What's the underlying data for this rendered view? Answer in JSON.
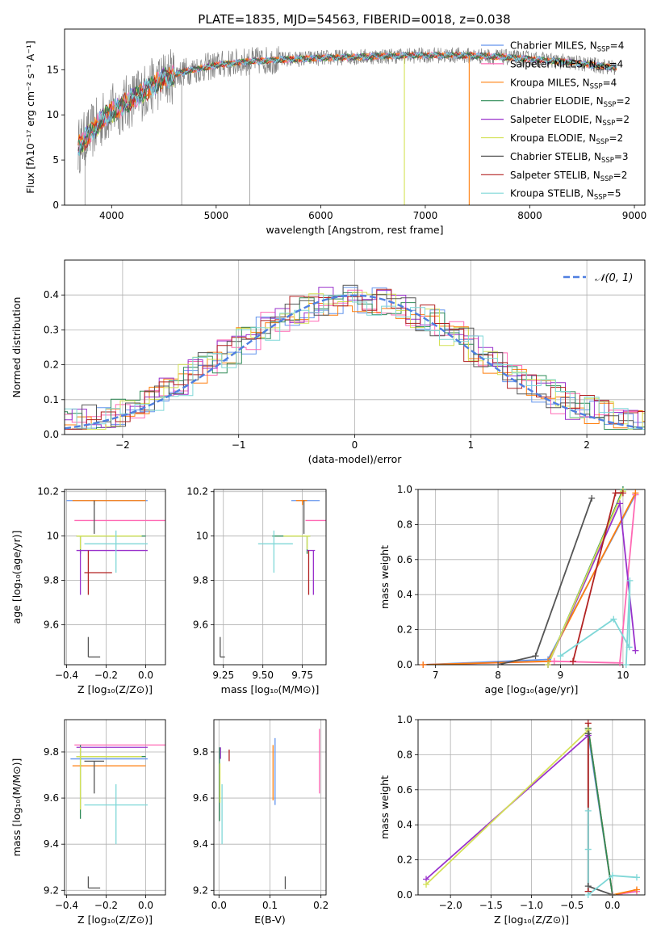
{
  "figure": {
    "title": "PLATE=1835, MJD=54563, FIBERID=0018, z=0.038"
  },
  "model_colors": {
    "Chabrier MILES": "#6495ed",
    "Salpeter MILES": "#ff69b4",
    "Kroupa MILES": "#ff7f0e",
    "Chabrier ELODIE": "#2e8b57",
    "Salpeter ELODIE": "#9932cc",
    "Kroupa ELODIE": "#d4e157",
    "Chabrier STELIB": "#555555",
    "Salpeter STELIB": "#b22222",
    "Kroupa STELIB": "#7fd7d7",
    "data": "#808080"
  },
  "chart_data": [
    {
      "id": "spectrum",
      "type": "line",
      "title": "PLATE=1835, MJD=54563, FIBERID=0018, z=0.038",
      "xlabel": "wavelength [Angstrom, rest frame]",
      "ylabel": "Flux [fλ10⁻¹⁷ erg cm⁻² s⁻¹ A⁻¹]",
      "xlim": [
        3550,
        9100
      ],
      "ylim": [
        0,
        19.5
      ],
      "xticks": [
        4000,
        5000,
        6000,
        7000,
        8000,
        9000
      ],
      "yticks": [
        0,
        5,
        10,
        15
      ],
      "grid": false,
      "legend_position": "top-right",
      "continuum": [
        [
          3680,
          6.5
        ],
        [
          3800,
          8.0
        ],
        [
          3950,
          10.0
        ],
        [
          4100,
          11.0
        ],
        [
          4300,
          12.5
        ],
        [
          4500,
          14.0
        ],
        [
          4700,
          14.8
        ],
        [
          5000,
          15.5
        ],
        [
          5300,
          15.9
        ],
        [
          5600,
          16.1
        ],
        [
          6000,
          16.3
        ],
        [
          6300,
          16.4
        ],
        [
          6600,
          16.5
        ],
        [
          7000,
          16.6
        ],
        [
          7300,
          16.6
        ],
        [
          7600,
          16.5
        ],
        [
          8000,
          16.2
        ],
        [
          8400,
          15.8
        ],
        [
          8830,
          15.2
        ]
      ],
      "dropouts": [
        {
          "x": 6800,
          "y": 0
        },
        {
          "x": 7420,
          "y": 0
        }
      ],
      "series": [
        {
          "name": "Chabrier MILES, N_SSP=4"
        },
        {
          "name": "Salpeter MILES, N_SSP=4"
        },
        {
          "name": "Kroupa MILES, N_SSP=4"
        },
        {
          "name": "Chabrier ELODIE, N_SSP=2"
        },
        {
          "name": "Salpeter ELODIE, N_SSP=2"
        },
        {
          "name": "Kroupa ELODIE, N_SSP=2"
        },
        {
          "name": "Chabrier STELIB, N_SSP=3"
        },
        {
          "name": "Salpeter STELIB, N_SSP=2"
        },
        {
          "name": "Kroupa STELIB, N_SSP=5"
        }
      ]
    },
    {
      "id": "residuals",
      "type": "line",
      "xlabel": "(data-model)/error",
      "ylabel": "Normed distribution",
      "xlim": [
        -2.5,
        2.5
      ],
      "ylim": [
        0,
        0.5
      ],
      "xticks": [
        -2,
        -1,
        0,
        1,
        2
      ],
      "xtick_labels": [
        "−2",
        "−1",
        "0",
        "1",
        "2"
      ],
      "yticks": [
        0.0,
        0.1,
        0.2,
        0.3,
        0.4
      ],
      "grid": true,
      "legend_position": "top-right",
      "gaussian": {
        "name": "𝒩(0, 1)",
        "mean": 0,
        "sigma": 1
      },
      "bin_width": 0.125
    },
    {
      "id": "age-Z",
      "type": "scatter",
      "xlabel": "Z [log₁₀(Z/Z⊙)]",
      "ylabel": "age  [log₁₀(age/yr)]",
      "xlim": [
        -0.41,
        0.1
      ],
      "ylim": [
        9.42,
        10.21
      ],
      "xticks": [
        -0.4,
        -0.2,
        0.0
      ],
      "xtick_labels": [
        "−0.4",
        "−0.2",
        "0.0"
      ],
      "yticks": [
        9.6,
        9.8,
        10.0,
        10.2
      ],
      "grid": true,
      "points": [
        {
          "model": "Chabrier MILES",
          "x": -0.28,
          "y": 10.16,
          "xerr": [
            0.12,
            0.29
          ],
          "yerr": [
            0.0,
            0.0
          ]
        },
        {
          "model": "Salpeter MILES",
          "x": -0.27,
          "y": 10.07,
          "xerr": [
            0.09,
            0.37
          ],
          "yerr": [
            0.0,
            0.0
          ]
        },
        {
          "model": "Kroupa MILES",
          "x": -0.26,
          "y": 10.16,
          "xerr": [
            0.11,
            0.26
          ],
          "yerr": [
            0.02,
            0.0
          ]
        },
        {
          "model": "Chabrier ELODIE",
          "x": -0.33,
          "y": 10.0,
          "xerr": [
            0.02,
            0.33
          ],
          "yerr": [
            0.08,
            0.0
          ]
        },
        {
          "model": "Salpeter ELODIE",
          "x": -0.33,
          "y": 9.935,
          "xerr": [
            0.02,
            0.34
          ],
          "yerr": [
            0.2,
            0.0
          ]
        },
        {
          "model": "Kroupa ELODIE",
          "x": -0.33,
          "y": 10.0,
          "xerr": [
            0.02,
            0.31
          ],
          "yerr": [
            0.06,
            0.0
          ]
        },
        {
          "model": "Chabrier STELIB",
          "x": -0.26,
          "y": 10.16,
          "xerr": [
            0.0,
            0.0
          ],
          "yerr": [
            0.15,
            0.0
          ]
        },
        {
          "model": "Salpeter STELIB",
          "x": -0.29,
          "y": 9.835,
          "xerr": [
            0.02,
            0.12
          ],
          "yerr": [
            0.1,
            0.1
          ]
        },
        {
          "model": "Kroupa STELIB",
          "x": -0.15,
          "y": 9.965,
          "xerr": [
            0.16,
            0.16
          ],
          "yerr": [
            0.13,
            0.06
          ]
        }
      ],
      "scale_bar": {
        "x": -0.29,
        "y": 9.455,
        "dx": 0.06,
        "dy": 0.09
      }
    },
    {
      "id": "age-mass",
      "type": "scatter",
      "xlabel": "mass [log₁₀(M/M⊙)]",
      "xlim": [
        9.19,
        9.9
      ],
      "ylim": [
        9.42,
        10.21
      ],
      "xticks": [
        9.25,
        9.5,
        9.75
      ],
      "xtick_labels": [
        "9.25",
        "9.50",
        "9.75"
      ],
      "yticks": [
        9.6,
        9.8,
        10.0,
        10.2
      ],
      "grid": true,
      "points": [
        {
          "model": "Chabrier MILES",
          "x": 9.76,
          "y": 10.16,
          "xerr": [
            0.08,
            0.1
          ],
          "yerr": [
            0.0,
            0.0
          ]
        },
        {
          "model": "Salpeter MILES",
          "x": 9.83,
          "y": 10.07,
          "xerr": [
            0.06,
            0.1
          ],
          "yerr": [
            0.0,
            0.0
          ]
        },
        {
          "model": "Kroupa MILES",
          "x": 9.75,
          "y": 10.16,
          "xerr": [
            0.04,
            0.03
          ],
          "yerr": [
            0.02,
            0.0
          ]
        },
        {
          "model": "Chabrier ELODIE",
          "x": 9.78,
          "y": 10.0,
          "xerr": [
            0.22,
            0.02
          ],
          "yerr": [
            0.08,
            0.0
          ]
        },
        {
          "model": "Salpeter ELODIE",
          "x": 9.82,
          "y": 9.935,
          "xerr": [
            0.04,
            0.01
          ],
          "yerr": [
            0.2,
            0.0
          ]
        },
        {
          "model": "Kroupa ELODIE",
          "x": 9.78,
          "y": 10.0,
          "xerr": [
            0.15,
            0.02
          ],
          "yerr": [
            0.06,
            0.0
          ]
        },
        {
          "model": "Chabrier STELIB",
          "x": 9.76,
          "y": 10.16,
          "xerr": [
            0.0,
            0.0
          ],
          "yerr": [
            0.15,
            0.0
          ]
        },
        {
          "model": "Salpeter STELIB",
          "x": 9.79,
          "y": 9.835,
          "xerr": [
            0.0,
            0.0
          ],
          "yerr": [
            0.1,
            0.1
          ]
        },
        {
          "model": "Kroupa STELIB",
          "x": 9.57,
          "y": 9.965,
          "xerr": [
            0.1,
            0.12
          ],
          "yerr": [
            0.13,
            0.06
          ]
        }
      ],
      "scale_bar": {
        "x": 9.23,
        "y": 9.455,
        "dx": 0.03,
        "dy": 0.09
      }
    },
    {
      "id": "weight-age",
      "type": "line",
      "xlabel": "age  [log₁₀(age/yr)]",
      "ylabel": "mass weight",
      "xlim": [
        6.72,
        10.35
      ],
      "ylim": [
        0,
        1.0
      ],
      "xticks": [
        7,
        8,
        9,
        10
      ],
      "yticks": [
        0.0,
        0.2,
        0.4,
        0.6,
        0.8,
        1.0
      ],
      "grid": true,
      "series": [
        {
          "model": "Chabrier MILES",
          "x": [
            6.8,
            8.8,
            10.2
          ],
          "y": [
            0.0,
            0.03,
            0.97
          ]
        },
        {
          "model": "Salpeter MILES",
          "x": [
            6.8,
            8.9,
            9.95,
            10.2
          ],
          "y": [
            0.0,
            0.02,
            0.01,
            0.97
          ]
        },
        {
          "model": "Kroupa MILES",
          "x": [
            6.8,
            8.8,
            10.2
          ],
          "y": [
            0.0,
            0.02,
            0.98
          ]
        },
        {
          "model": "Chabrier ELODIE",
          "x": [
            8.8,
            10.0
          ],
          "y": [
            0.0,
            1.0
          ]
        },
        {
          "model": "Salpeter ELODIE",
          "x": [
            8.8,
            9.95,
            10.2
          ],
          "y": [
            0.0,
            0.92,
            0.08
          ]
        },
        {
          "model": "Kroupa ELODIE",
          "x": [
            8.8,
            10.0
          ],
          "y": [
            0.0,
            0.99
          ]
        },
        {
          "model": "Chabrier STELIB",
          "x": [
            8.0,
            8.6,
            9.5
          ],
          "y": [
            0.0,
            0.05,
            0.95
          ]
        },
        {
          "model": "Salpeter STELIB",
          "x": [
            9.2,
            9.88,
            10.0
          ],
          "y": [
            0.02,
            0.98,
            0.98
          ]
        },
        {
          "model": "Kroupa STELIB",
          "x": [
            9.0,
            9.85,
            10.1,
            10.11,
            10.05
          ],
          "y": [
            0.05,
            0.26,
            0.1,
            0.48,
            0.0
          ]
        }
      ]
    },
    {
      "id": "mass-Z",
      "type": "scatter",
      "xlabel": "Z [log₁₀(Z/Z⊙)]",
      "ylabel": "mass [log₁₀(M/M⊙)]",
      "xlim": [
        -0.41,
        0.1
      ],
      "ylim": [
        9.18,
        9.94
      ],
      "xticks": [
        -0.4,
        -0.2,
        0.0
      ],
      "xtick_labels": [
        "−0.4",
        "−0.2",
        "0.0"
      ],
      "yticks": [
        9.2,
        9.4,
        9.6,
        9.8
      ],
      "grid": true,
      "points": [
        {
          "model": "Chabrier MILES",
          "x": -0.28,
          "y": 9.77,
          "xerr": [
            0.1,
            0.29
          ],
          "yerr": [
            0.0,
            0.0
          ]
        },
        {
          "model": "Salpeter MILES",
          "x": -0.27,
          "y": 9.83,
          "xerr": [
            0.09,
            0.37
          ],
          "yerr": [
            0.0,
            0.0
          ]
        },
        {
          "model": "Kroupa MILES",
          "x": -0.26,
          "y": 9.74,
          "xerr": [
            0.11,
            0.26
          ],
          "yerr": [
            0.0,
            0.0
          ]
        },
        {
          "model": "Chabrier ELODIE",
          "x": -0.33,
          "y": 9.78,
          "xerr": [
            0.02,
            0.33
          ],
          "yerr": [
            0.27,
            0.05
          ]
        },
        {
          "model": "Salpeter ELODIE",
          "x": -0.33,
          "y": 9.82,
          "xerr": [
            0.02,
            0.34
          ],
          "yerr": [
            0.0,
            0.0
          ]
        },
        {
          "model": "Kroupa ELODIE",
          "x": -0.33,
          "y": 9.78,
          "xerr": [
            0.02,
            0.31
          ],
          "yerr": [
            0.23,
            0.04
          ]
        },
        {
          "model": "Chabrier STELIB",
          "x": -0.26,
          "y": 9.76,
          "xerr": [
            0.05,
            0.05
          ],
          "yerr": [
            0.14,
            0.0
          ]
        },
        {
          "model": "Salpeter STELIB",
          "x": -0.29,
          "y": 9.79,
          "xerr": [
            0.0,
            0.0
          ],
          "yerr": [
            0.0,
            0.0
          ]
        },
        {
          "model": "Kroupa STELIB",
          "x": -0.15,
          "y": 9.57,
          "xerr": [
            0.16,
            0.16
          ],
          "yerr": [
            0.17,
            0.09
          ]
        }
      ],
      "scale_bar": {
        "x": -0.29,
        "y": 9.21,
        "dx": 0.06,
        "dy": 0.05
      }
    },
    {
      "id": "mass-EBV",
      "type": "scatter",
      "xlabel": "E(B-V)",
      "xlim": [
        -0.01,
        0.21
      ],
      "ylim": [
        9.18,
        9.94
      ],
      "xticks": [
        0.0,
        0.1,
        0.2
      ],
      "xtick_labels": [
        "0.0",
        "0.1",
        "0.2"
      ],
      "yticks": [
        9.2,
        9.4,
        9.6,
        9.8
      ],
      "grid": true,
      "points": [
        {
          "model": "Chabrier MILES",
          "x": 0.11,
          "y": 9.77,
          "xerr": [
            0.0,
            0.0
          ],
          "yerr": [
            0.2,
            0.09
          ]
        },
        {
          "model": "Salpeter MILES",
          "x": 0.197,
          "y": 9.77,
          "xerr": [
            0.0,
            0.0
          ],
          "yerr": [
            0.15,
            0.13
          ]
        },
        {
          "model": "Kroupa MILES",
          "x": 0.106,
          "y": 9.74,
          "xerr": [
            0.0,
            0.0
          ],
          "yerr": [
            0.15,
            0.09
          ]
        },
        {
          "model": "Chabrier ELODIE",
          "x": 0.001,
          "y": 9.7,
          "xerr": [
            0.0,
            0.0
          ],
          "yerr": [
            0.2,
            0.12
          ]
        },
        {
          "model": "Salpeter ELODIE",
          "x": 0.003,
          "y": 9.8,
          "xerr": [
            0.0,
            0.0
          ],
          "yerr": [
            0.03,
            0.02
          ]
        },
        {
          "model": "Kroupa ELODIE",
          "x": 0.002,
          "y": 9.65,
          "xerr": [
            0.0,
            0.0
          ],
          "yerr": [
            0.07,
            0.1
          ]
        },
        {
          "model": "Chabrier STELIB",
          "x": 0.13,
          "y": 9.235,
          "xerr": [
            0.0,
            0.0
          ],
          "yerr": [
            0.03,
            0.025
          ]
        },
        {
          "model": "Salpeter STELIB",
          "x": 0.02,
          "y": 9.79,
          "xerr": [
            0.0,
            0.0
          ],
          "yerr": [
            0.03,
            0.02
          ]
        },
        {
          "model": "Kroupa STELIB",
          "x": 0.006,
          "y": 9.55,
          "xerr": [
            0.0,
            0.0
          ],
          "yerr": [
            0.15,
            0.11
          ]
        }
      ]
    },
    {
      "id": "weight-Z",
      "type": "line",
      "xlabel": "Z [log₁₀(Z/Z⊙)]",
      "ylabel": "mass weight",
      "xlim": [
        -2.4,
        0.4
      ],
      "ylim": [
        0,
        1.0
      ],
      "xticks": [
        -2.0,
        -1.5,
        -1.0,
        -0.5,
        0.0
      ],
      "xtick_labels": [
        "−2.0",
        "−1.5",
        "−1.0",
        "−0.5",
        "0.0"
      ],
      "yticks": [
        0.0,
        0.2,
        0.4,
        0.6,
        0.8,
        1.0
      ],
      "grid": true,
      "series": [
        {
          "model": "Chabrier MILES",
          "x": [
            -0.3,
            0.0,
            0.3
          ],
          "y": [
            0.92,
            0.0,
            0.02
          ]
        },
        {
          "model": "Salpeter MILES",
          "x": [
            -0.3,
            0.0,
            0.3
          ],
          "y": [
            0.95,
            0.0,
            0.02
          ]
        },
        {
          "model": "Kroupa MILES",
          "x": [
            -0.3,
            0.0,
            0.3
          ],
          "y": [
            0.95,
            0.0,
            0.03
          ]
        },
        {
          "model": "Chabrier ELODIE",
          "x": [
            -0.3,
            0.0
          ],
          "y": [
            0.95,
            0.0
          ]
        },
        {
          "model": "Salpeter ELODIE",
          "x": [
            -2.3,
            -0.3
          ],
          "y": [
            0.09,
            0.91
          ]
        },
        {
          "model": "Kroupa ELODIE",
          "x": [
            -2.3,
            -0.3
          ],
          "y": [
            0.06,
            0.94
          ]
        },
        {
          "model": "Chabrier STELIB",
          "x": [
            -0.3,
            -0.3,
            0.0
          ],
          "y": [
            0.92,
            0.05,
            0.0
          ]
        },
        {
          "model": "Salpeter STELIB",
          "x": [
            -0.3,
            -0.3,
            -0.3
          ],
          "y": [
            0.02,
            0.98,
            0.02
          ]
        },
        {
          "model": "Kroupa STELIB",
          "x": [
            -0.3,
            -0.3,
            -0.3,
            0.0,
            0.3
          ],
          "y": [
            0.26,
            0.48,
            0.0,
            0.11,
            0.1
          ]
        }
      ]
    }
  ]
}
